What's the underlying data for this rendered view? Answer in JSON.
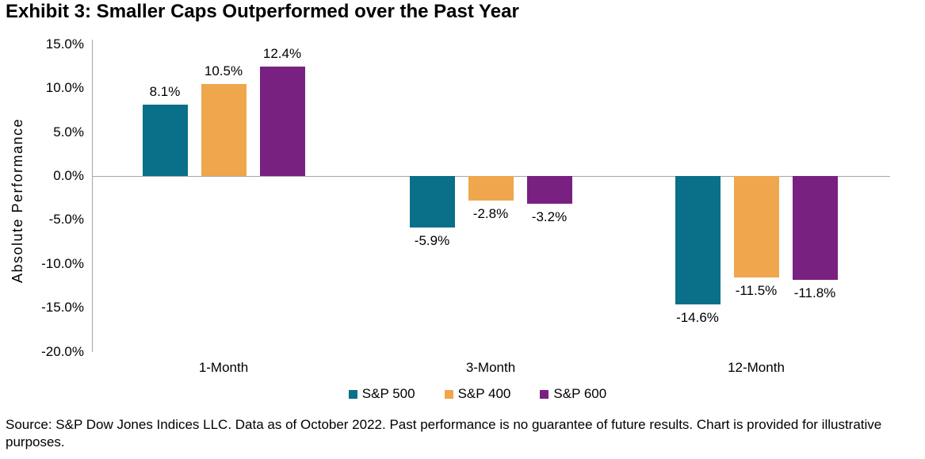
{
  "title": "Exhibit 3: Smaller Caps Outperformed over the Past Year",
  "chart_data": {
    "type": "bar",
    "title": "Exhibit 3: Smaller Caps Outperformed over the Past Year",
    "categories": [
      "1-Month",
      "3-Month",
      "12-Month"
    ],
    "series": [
      {
        "name": "S&P 500",
        "color": "#0A7089",
        "values": [
          8.1,
          -5.9,
          -14.6
        ],
        "labels": [
          "8.1%",
          "-5.9%",
          "-14.6%"
        ]
      },
      {
        "name": "S&P 400",
        "color": "#F0A64D",
        "values": [
          10.5,
          -2.8,
          -11.5
        ],
        "labels": [
          "10.5%",
          "-2.8%",
          "-11.5%"
        ]
      },
      {
        "name": "S&P 600",
        "color": "#782180",
        "values": [
          12.4,
          -3.2,
          -11.8
        ],
        "labels": [
          "12.4%",
          "-3.2%",
          "-11.8%"
        ]
      }
    ],
    "xlabel": "",
    "ylabel": "Absolute Performance",
    "ylim": [
      -20,
      15
    ],
    "yticks": [
      "15.0%",
      "10.0%",
      "5.0%",
      "0.0%",
      "-5.0%",
      "-10.0%",
      "-15.0%",
      "-20.0%"
    ],
    "grid": false,
    "legend_position": "bottom",
    "data_labels": true
  },
  "footer": {
    "source": "Source: S&P Dow Jones Indices LLC. Data as of October 2022. Past performance is no guarantee of future results. Chart is provided for illustrative purposes."
  },
  "colors": {
    "axis": "#A6A6A6",
    "text": "#000000",
    "background": "#FFFFFF"
  }
}
